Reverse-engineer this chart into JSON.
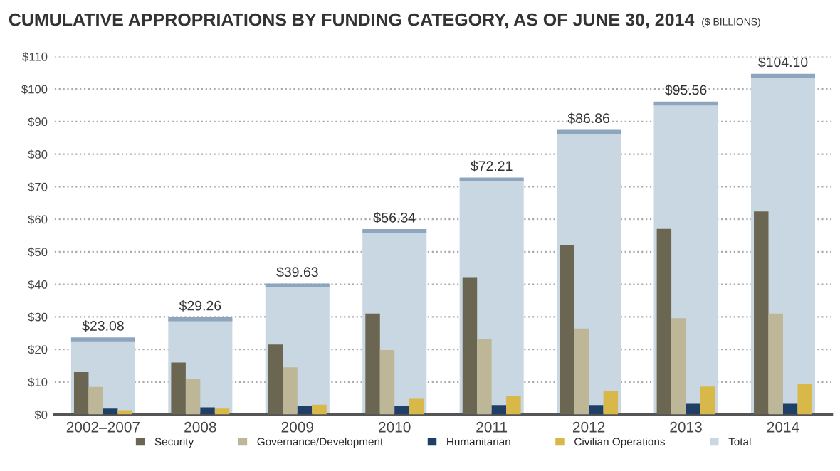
{
  "chart_data": {
    "type": "bar",
    "title": "CUMULATIVE APPROPRIATIONS BY FUNDING CATEGORY, AS OF JUNE 30, 2014",
    "subtitle": "($ BILLIONS)",
    "categories": [
      "2002–2007",
      "2008",
      "2009",
      "2010",
      "2011",
      "2012",
      "2013",
      "2014"
    ],
    "series": [
      {
        "name": "Security",
        "color": "#6b6651",
        "values": [
          13,
          16,
          21.5,
          31,
          42,
          52,
          57,
          62.4
        ]
      },
      {
        "name": "Governance/Development",
        "color": "#bdb797",
        "values": [
          8.5,
          11,
          14.5,
          19.8,
          23.3,
          26.4,
          29.6,
          31
        ]
      },
      {
        "name": "Humanitarian",
        "color": "#1f3f66",
        "values": [
          1.8,
          2.2,
          2.6,
          2.6,
          2.9,
          2.9,
          3.3,
          3.3
        ]
      },
      {
        "name": "Civilian Operations",
        "color": "#d9b84a",
        "values": [
          1.3,
          1.8,
          3,
          4.8,
          5.6,
          7.1,
          8.6,
          9.3
        ]
      },
      {
        "name": "Total",
        "color": "#c9d7e3",
        "values": [
          23.08,
          29.26,
          39.63,
          56.34,
          72.21,
          86.86,
          95.56,
          104.1
        ],
        "value_labels": [
          "$23.08",
          "$29.26",
          "$39.63",
          "$56.34",
          "$72.21",
          "$86.86",
          "$95.56",
          "$104.10"
        ]
      }
    ],
    "ylim": [
      0,
      110
    ],
    "yticks": [
      {
        "value": 0,
        "label": "$0"
      },
      {
        "value": 10,
        "label": "$10"
      },
      {
        "value": 20,
        "label": "$20"
      },
      {
        "value": 30,
        "label": "$30"
      },
      {
        "value": 40,
        "label": "$40"
      },
      {
        "value": 50,
        "label": "$50"
      },
      {
        "value": 60,
        "label": "$60"
      },
      {
        "value": 70,
        "label": "$70"
      },
      {
        "value": 80,
        "label": "$80"
      },
      {
        "value": 90,
        "label": "$90"
      },
      {
        "value": 100,
        "label": "$100"
      },
      {
        "value": 110,
        "label": "$110"
      }
    ],
    "grid": "y",
    "legend": "bottom"
  }
}
